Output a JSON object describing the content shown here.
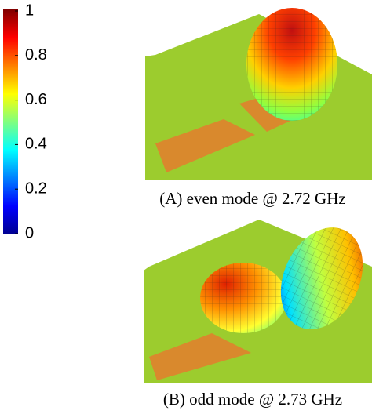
{
  "colorbar": {
    "ticks": [
      0,
      0.2,
      0.4,
      0.6,
      0.8,
      1
    ]
  },
  "panels": [
    {
      "caption": "(A) even mode @ 2.72 GHz"
    },
    {
      "caption": "(B) odd mode @ 2.73 GHz"
    }
  ]
}
